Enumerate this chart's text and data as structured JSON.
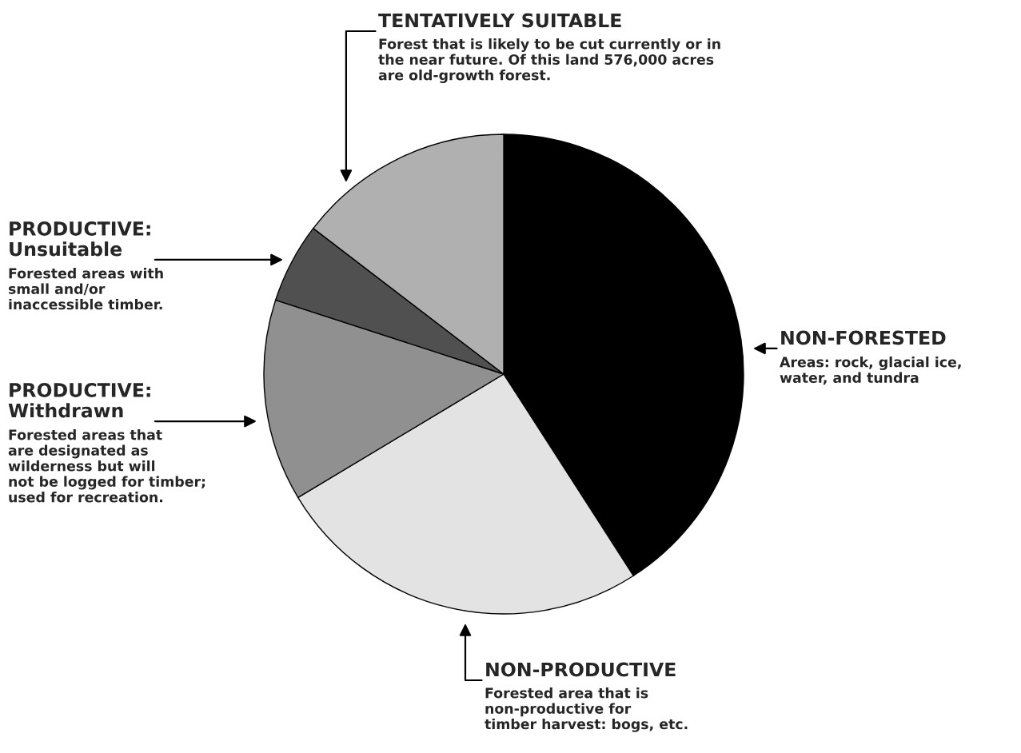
{
  "chart_data": {
    "type": "pie",
    "categories": [
      "NON-FORESTED",
      "NON-PRODUCTIVE",
      "PRODUCTIVE:\nWithdrawn",
      "PRODUCTIVE:\nUnsuitable",
      "TENTATIVELY SUITABLE"
    ],
    "values": [
      40.9,
      25.5,
      13.6,
      5.4,
      14.6
    ],
    "colors": [
      "#000000",
      "#e3e3e3",
      "#909090",
      "#505050",
      "#b0b0b0"
    ],
    "annotations": [
      "Areas: rock, glacial ice,\nwater, and tundra",
      "Forested area that is\nnon-productive for\ntimber harvest: bogs, etc.",
      "Forested areas that\nare designated as\nwilderness but will\nnot be logged for timber;\nused for recreation.",
      "Forested areas with\nsmall and/or\ninaccessible timber.",
      "Forest that is likely to be cut currently or in\nthe near future. Of this land 576,000 acres\nare old-growth forest."
    ]
  }
}
